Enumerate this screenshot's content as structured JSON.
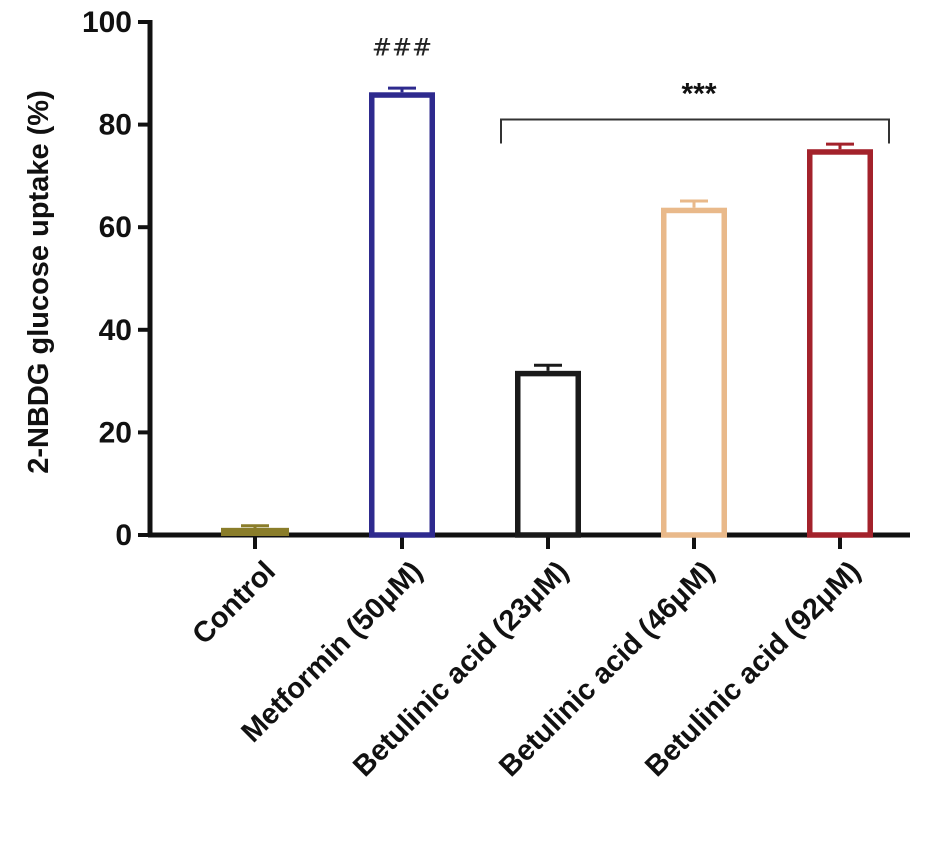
{
  "chart_data": {
    "type": "bar",
    "title": "",
    "xlabel": "",
    "ylabel": "2-NBDG glucose uptake (%)",
    "ylim": [
      0,
      100
    ],
    "yticks": [
      0,
      20,
      40,
      60,
      80,
      100
    ],
    "grid": false,
    "categories": [
      "Control",
      "Metformin (50μM)",
      "Betulinic acid  (23μM)",
      "Betulinic acid  (46μM)",
      "Betulinic acid  (92μM)"
    ],
    "values": [
      1.2,
      86.3,
      32.0,
      63.8,
      75.2
    ],
    "errors": [
      0.6,
      0.8,
      1.1,
      1.3,
      1.0
    ],
    "bar_colors": [
      "#8a7d2a",
      "#2e2a8e",
      "#1a1a1a",
      "#e9b98a",
      "#a3222b"
    ],
    "annotations": [
      {
        "text": "###",
        "category_index": 1
      },
      {
        "text": "***",
        "bracket_from_index": 2,
        "bracket_to_index": 4,
        "bracket_value": 81
      }
    ]
  }
}
